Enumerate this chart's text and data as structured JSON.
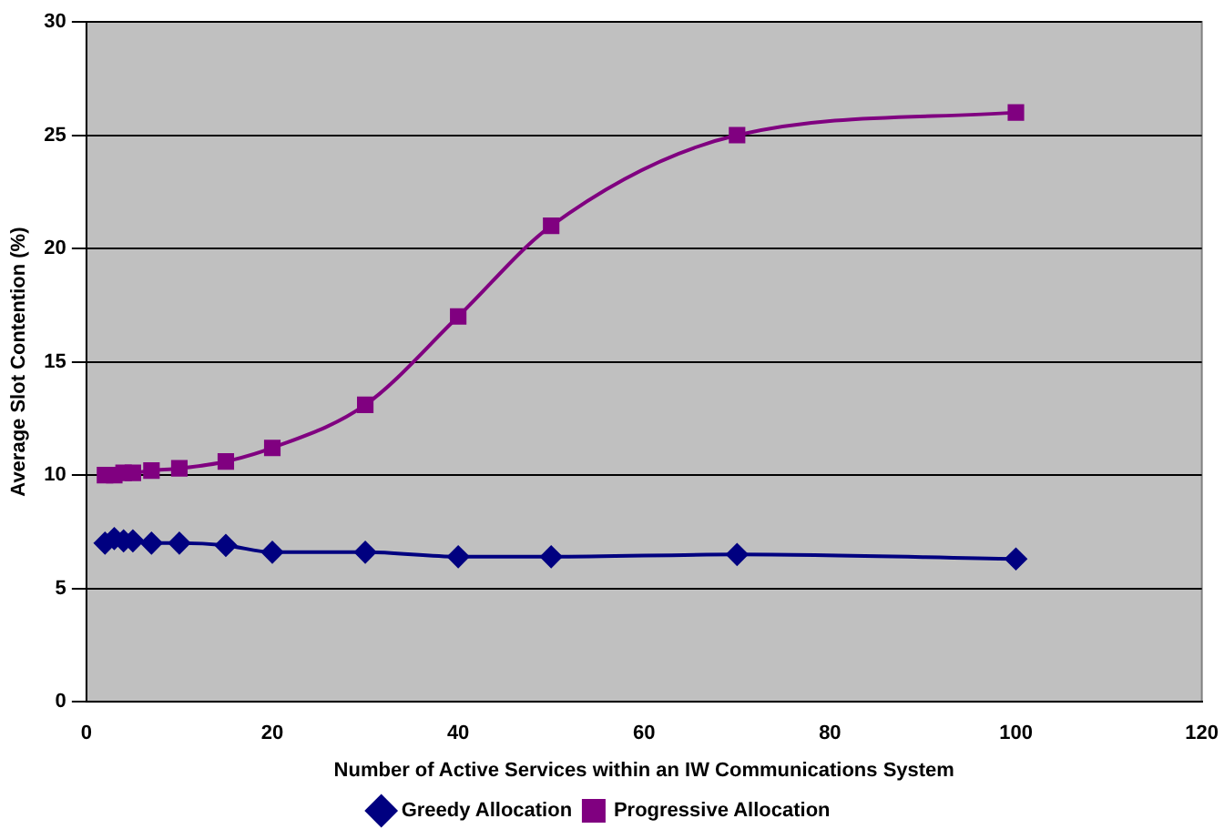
{
  "chart_data": {
    "type": "line",
    "xlabel": "Number of Active Services within an IW Communications System",
    "ylabel": "Average Slot Contention (%)",
    "x": [
      2,
      3,
      4,
      5,
      7,
      10,
      15,
      20,
      30,
      40,
      50,
      70,
      100
    ],
    "series": [
      {
        "name": "Greedy Allocation",
        "color": "#000080",
        "marker": "diamond",
        "values": [
          7.0,
          7.2,
          7.1,
          7.1,
          7.0,
          7.0,
          6.9,
          6.6,
          6.6,
          6.4,
          6.4,
          6.5,
          6.3
        ]
      },
      {
        "name": "Progressive Allocation",
        "color": "#800080",
        "marker": "square",
        "values": [
          10.0,
          10.0,
          10.1,
          10.1,
          10.2,
          10.3,
          10.6,
          11.2,
          13.1,
          17.0,
          21.0,
          25.0,
          26.0
        ]
      }
    ],
    "xlim": [
      0,
      120
    ],
    "xticks": [
      0,
      20,
      40,
      60,
      80,
      100,
      120
    ],
    "ylim": [
      0,
      30
    ],
    "yticks": [
      0,
      5,
      10,
      15,
      20,
      25,
      30
    ],
    "grid": "y",
    "legend": "bottom",
    "line_style": "solid"
  }
}
